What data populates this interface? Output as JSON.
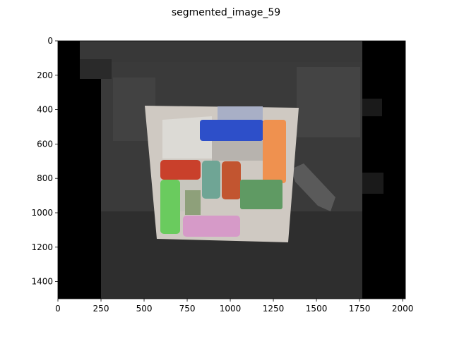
{
  "chart_data": {
    "type": "image",
    "title": "segmented_image_59",
    "xlim": [
      0,
      2016
    ],
    "ylim": [
      1500,
      0
    ],
    "xticks": [
      0,
      250,
      500,
      750,
      1000,
      1250,
      1500,
      1750,
      2000
    ],
    "yticks": [
      0,
      200,
      400,
      600,
      800,
      1000,
      1200,
      1400
    ]
  }
}
